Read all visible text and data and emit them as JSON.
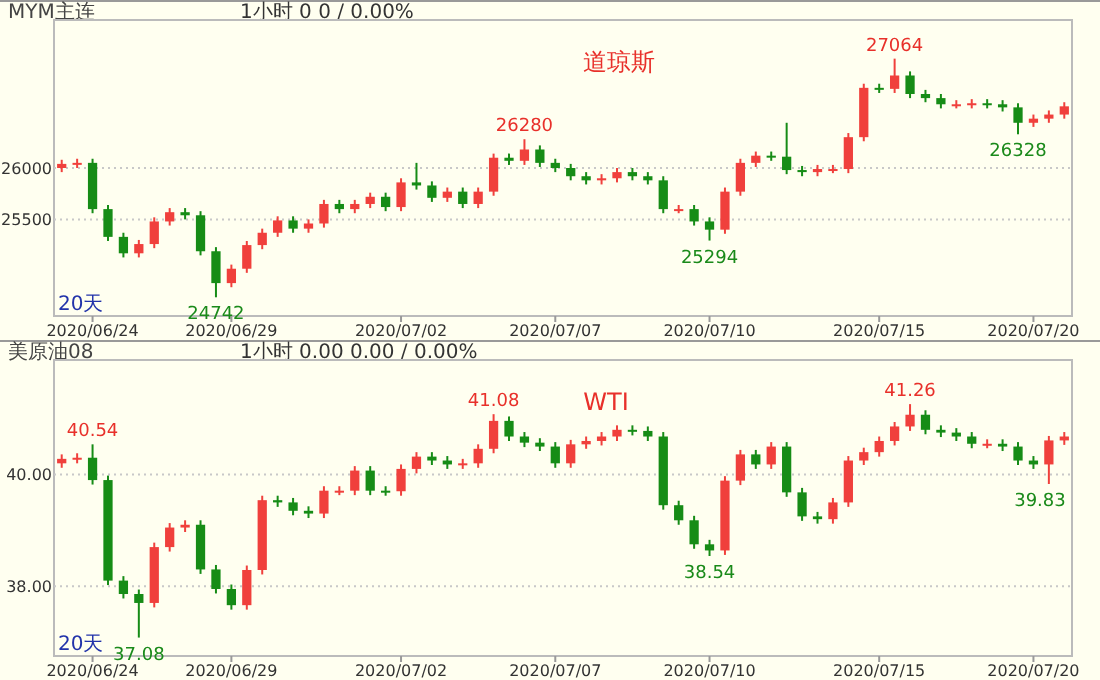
{
  "chart_data": [
    {
      "type": "candlestick",
      "title": "MYM主连",
      "subtitle": "1小时   0    0 / 0.00%",
      "categories": [
        null,
        null,
        "2020/06/24",
        null,
        null,
        null,
        null,
        null,
        null,
        null,
        null,
        "2020/06/29",
        null,
        null,
        null,
        null,
        null,
        null,
        null,
        null,
        null,
        null,
        "2020/07/02",
        null,
        null,
        null,
        null,
        null,
        null,
        null,
        null,
        null,
        "2020/07/07",
        null,
        null,
        null,
        null,
        null,
        null,
        null,
        null,
        null,
        "2020/07/10",
        null,
        null,
        null,
        null,
        null,
        null,
        null,
        null,
        null,
        null,
        "2020/07/15",
        null,
        null,
        null,
        null,
        null,
        null,
        null,
        null,
        null,
        "2020/07/20",
        null,
        null
      ],
      "ohlc": [
        [
          26000,
          26080,
          25960,
          26040
        ],
        [
          26040,
          26090,
          26000,
          26050
        ],
        [
          26050,
          26090,
          25560,
          25600
        ],
        [
          25600,
          25640,
          25290,
          25330
        ],
        [
          25330,
          25370,
          25130,
          25170
        ],
        [
          25170,
          25300,
          25130,
          25260
        ],
        [
          25260,
          25520,
          25220,
          25480
        ],
        [
          25480,
          25610,
          25440,
          25570
        ],
        [
          25570,
          25610,
          25500,
          25540
        ],
        [
          25540,
          25580,
          25150,
          25190
        ],
        [
          25190,
          25230,
          24742,
          24880
        ],
        [
          24880,
          25060,
          24840,
          25020
        ],
        [
          25020,
          25290,
          24980,
          25250
        ],
        [
          25250,
          25410,
          25210,
          25370
        ],
        [
          25370,
          25530,
          25330,
          25490
        ],
        [
          25490,
          25530,
          25370,
          25410
        ],
        [
          25410,
          25500,
          25370,
          25460
        ],
        [
          25460,
          25690,
          25420,
          25650
        ],
        [
          25650,
          25690,
          25560,
          25600
        ],
        [
          25600,
          25690,
          25560,
          25650
        ],
        [
          25650,
          25760,
          25610,
          25720
        ],
        [
          25720,
          25760,
          25580,
          25620
        ],
        [
          25620,
          25900,
          25580,
          25860
        ],
        [
          25860,
          26050,
          25790,
          25830
        ],
        [
          25830,
          25870,
          25670,
          25710
        ],
        [
          25710,
          25810,
          25670,
          25770
        ],
        [
          25770,
          25810,
          25610,
          25650
        ],
        [
          25650,
          25810,
          25610,
          25770
        ],
        [
          25770,
          26140,
          25730,
          26100
        ],
        [
          26100,
          26140,
          26030,
          26070
        ],
        [
          26070,
          26280,
          26030,
          26180
        ],
        [
          26180,
          26220,
          26010,
          26050
        ],
        [
          26050,
          26090,
          25960,
          26000
        ],
        [
          26000,
          26040,
          25880,
          25920
        ],
        [
          25920,
          25960,
          25840,
          25880
        ],
        [
          25880,
          25940,
          25840,
          25900
        ],
        [
          25900,
          26000,
          25860,
          25960
        ],
        [
          25960,
          26000,
          25880,
          25920
        ],
        [
          25920,
          25960,
          25840,
          25880
        ],
        [
          25880,
          25920,
          25560,
          25600
        ],
        [
          25600,
          25640,
          25560,
          25600
        ],
        [
          25600,
          25640,
          25440,
          25480
        ],
        [
          25480,
          25520,
          25294,
          25400
        ],
        [
          25400,
          25810,
          25360,
          25770
        ],
        [
          25770,
          26090,
          25730,
          26050
        ],
        [
          26050,
          26160,
          26010,
          26120
        ],
        [
          26120,
          26160,
          26070,
          26110
        ],
        [
          26110,
          26440,
          25940,
          25980
        ],
        [
          25980,
          26020,
          25920,
          25960
        ],
        [
          25960,
          26030,
          25920,
          25990
        ],
        [
          25990,
          26030,
          25950,
          25990
        ],
        [
          25990,
          26340,
          25950,
          26300
        ],
        [
          26300,
          26820,
          26260,
          26780
        ],
        [
          26780,
          26820,
          26730,
          26770
        ],
        [
          26770,
          27064,
          26730,
          26900
        ],
        [
          26900,
          26940,
          26680,
          26720
        ],
        [
          26720,
          26760,
          26640,
          26680
        ],
        [
          26680,
          26720,
          26580,
          26620
        ],
        [
          26620,
          26660,
          26580,
          26620
        ],
        [
          26620,
          26670,
          26580,
          26630
        ],
        [
          26630,
          26670,
          26580,
          26620
        ],
        [
          26620,
          26660,
          26550,
          26590
        ],
        [
          26590,
          26630,
          26328,
          26440
        ],
        [
          26440,
          26520,
          26400,
          26480
        ],
        [
          26480,
          26560,
          26440,
          26520
        ],
        [
          26520,
          26640,
          26480,
          26600
        ]
      ],
      "colors": [
        "#f0403c",
        "#f0403c",
        "#168c16",
        "#168c16",
        "#168c16",
        "#f0403c",
        "#f0403c",
        "#f0403c",
        "#168c16",
        "#168c16",
        "#168c16",
        "#f0403c",
        "#f0403c",
        "#f0403c",
        "#f0403c",
        "#168c16",
        "#f0403c",
        "#f0403c",
        "#168c16",
        "#f0403c",
        "#f0403c",
        "#168c16",
        "#f0403c",
        "#168c16",
        "#168c16",
        "#f0403c",
        "#168c16",
        "#f0403c",
        "#f0403c",
        "#168c16",
        "#f0403c",
        "#168c16",
        "#168c16",
        "#168c16",
        "#168c16",
        "#f0403c",
        "#f0403c",
        "#168c16",
        "#168c16",
        "#168c16",
        "#f0403c",
        "#168c16",
        "#168c16",
        "#f0403c",
        "#f0403c",
        "#f0403c",
        "#168c16",
        "#168c16",
        "#168c16",
        "#f0403c",
        "#f0403c",
        "#f0403c",
        "#f0403c",
        "#168c16",
        "#f0403c",
        "#168c16",
        "#168c16",
        "#168c16",
        "#f0403c",
        "#f0403c",
        "#168c16",
        "#168c16",
        "#168c16",
        "#f0403c",
        "#f0403c",
        "#f0403c"
      ],
      "ylim": [
        24560,
        27440
      ],
      "yticks": [
        25500,
        26000
      ],
      "grid": "y",
      "annotations": [
        "道琼斯",
        "20天",
        {
          "text": "24742",
          "y": 24742
        },
        {
          "text": "26280",
          "y": 26280
        },
        {
          "text": "25294",
          "y": 25294
        },
        {
          "text": "27064",
          "y": 27064
        },
        {
          "text": "26328",
          "y": 26328
        }
      ]
    },
    {
      "type": "candlestick",
      "title": "美原油08",
      "subtitle": "1小时   0.00    0.00 / 0.00%",
      "categories": [
        null,
        null,
        "2020/06/24",
        null,
        null,
        null,
        null,
        null,
        null,
        null,
        null,
        "2020/06/29",
        null,
        null,
        null,
        null,
        null,
        null,
        null,
        null,
        null,
        null,
        "2020/07/02",
        null,
        null,
        null,
        null,
        null,
        null,
        null,
        null,
        null,
        "2020/07/07",
        null,
        null,
        null,
        null,
        null,
        null,
        null,
        null,
        null,
        "2020/07/10",
        null,
        null,
        null,
        null,
        null,
        null,
        null,
        null,
        null,
        null,
        "2020/07/15",
        null,
        null,
        null,
        null,
        null,
        null,
        null,
        null,
        null,
        "2020/07/20",
        null,
        null
      ],
      "ohlc": [
        [
          40.2,
          40.36,
          40.12,
          40.28
        ],
        [
          40.28,
          40.38,
          40.2,
          40.3
        ],
        [
          40.3,
          40.54,
          39.82,
          39.9
        ],
        [
          39.9,
          39.98,
          38.02,
          38.1
        ],
        [
          38.1,
          38.18,
          37.78,
          37.86
        ],
        [
          37.86,
          37.94,
          37.08,
          37.7
        ],
        [
          37.7,
          38.78,
          37.62,
          38.7
        ],
        [
          38.7,
          39.13,
          38.62,
          39.05
        ],
        [
          39.05,
          39.18,
          38.97,
          39.1
        ],
        [
          39.1,
          39.18,
          38.22,
          38.3
        ],
        [
          38.3,
          38.38,
          37.87,
          37.95
        ],
        [
          37.95,
          38.03,
          37.58,
          37.66
        ],
        [
          37.66,
          38.37,
          37.58,
          38.29
        ],
        [
          38.29,
          39.62,
          38.21,
          39.54
        ],
        [
          39.54,
          39.62,
          39.42,
          39.5
        ],
        [
          39.5,
          39.58,
          39.27,
          39.35
        ],
        [
          39.35,
          39.43,
          39.22,
          39.3
        ],
        [
          39.3,
          39.79,
          39.22,
          39.71
        ],
        [
          39.71,
          39.79,
          39.63,
          39.71
        ],
        [
          39.71,
          40.15,
          39.63,
          40.07
        ],
        [
          40.07,
          40.15,
          39.63,
          39.71
        ],
        [
          39.71,
          39.79,
          39.62,
          39.7
        ],
        [
          39.7,
          40.18,
          39.62,
          40.1
        ],
        [
          40.1,
          40.4,
          40.02,
          40.32
        ],
        [
          40.32,
          40.4,
          40.17,
          40.25
        ],
        [
          40.25,
          40.33,
          40.1,
          40.18
        ],
        [
          40.18,
          40.28,
          40.1,
          40.2
        ],
        [
          40.2,
          40.54,
          40.12,
          40.46
        ],
        [
          40.46,
          41.08,
          40.38,
          40.96
        ],
        [
          40.96,
          41.04,
          40.6,
          40.68
        ],
        [
          40.68,
          40.76,
          40.49,
          40.57
        ],
        [
          40.57,
          40.65,
          40.42,
          40.5
        ],
        [
          40.5,
          40.58,
          40.12,
          40.2
        ],
        [
          40.2,
          40.62,
          40.12,
          40.54
        ],
        [
          40.54,
          40.68,
          40.46,
          40.6
        ],
        [
          40.6,
          40.76,
          40.52,
          40.68
        ],
        [
          40.68,
          40.88,
          40.6,
          40.8
        ],
        [
          40.8,
          40.88,
          40.7,
          40.78
        ],
        [
          40.78,
          40.86,
          40.6,
          40.68
        ],
        [
          40.68,
          40.76,
          39.37,
          39.45
        ],
        [
          39.45,
          39.53,
          39.1,
          39.18
        ],
        [
          39.18,
          39.26,
          38.67,
          38.75
        ],
        [
          38.75,
          38.83,
          38.54,
          38.64
        ],
        [
          38.64,
          39.97,
          38.56,
          39.89
        ],
        [
          39.89,
          40.44,
          39.81,
          40.36
        ],
        [
          40.36,
          40.44,
          40.1,
          40.18
        ],
        [
          40.18,
          40.58,
          40.1,
          40.5
        ],
        [
          40.5,
          40.58,
          39.6,
          39.68
        ],
        [
          39.68,
          39.76,
          39.17,
          39.25
        ],
        [
          39.25,
          39.33,
          39.12,
          39.2
        ],
        [
          39.2,
          39.58,
          39.12,
          39.5
        ],
        [
          39.5,
          40.33,
          39.42,
          40.25
        ],
        [
          40.25,
          40.48,
          40.17,
          40.4
        ],
        [
          40.4,
          40.68,
          40.32,
          40.6
        ],
        [
          40.6,
          40.94,
          40.52,
          40.86
        ],
        [
          40.86,
          41.26,
          40.78,
          41.07
        ],
        [
          41.07,
          41.15,
          40.72,
          40.8
        ],
        [
          40.8,
          40.88,
          40.67,
          40.75
        ],
        [
          40.75,
          40.83,
          40.6,
          40.68
        ],
        [
          40.68,
          40.76,
          40.47,
          40.55
        ],
        [
          40.55,
          40.63,
          40.47,
          40.55
        ],
        [
          40.55,
          40.63,
          40.42,
          40.5
        ],
        [
          40.5,
          40.58,
          40.17,
          40.25
        ],
        [
          40.25,
          40.33,
          40.1,
          40.18
        ],
        [
          40.18,
          40.69,
          39.83,
          40.61
        ],
        [
          40.61,
          40.76,
          40.53,
          40.68
        ]
      ],
      "colors": [
        "#f0403c",
        "#f0403c",
        "#168c16",
        "#168c16",
        "#168c16",
        "#168c16",
        "#f0403c",
        "#f0403c",
        "#f0403c",
        "#168c16",
        "#168c16",
        "#168c16",
        "#f0403c",
        "#f0403c",
        "#168c16",
        "#168c16",
        "#168c16",
        "#f0403c",
        "#f0403c",
        "#f0403c",
        "#168c16",
        "#168c16",
        "#f0403c",
        "#f0403c",
        "#168c16",
        "#168c16",
        "#f0403c",
        "#f0403c",
        "#f0403c",
        "#168c16",
        "#168c16",
        "#168c16",
        "#168c16",
        "#f0403c",
        "#f0403c",
        "#f0403c",
        "#f0403c",
        "#168c16",
        "#168c16",
        "#168c16",
        "#168c16",
        "#168c16",
        "#168c16",
        "#f0403c",
        "#f0403c",
        "#168c16",
        "#f0403c",
        "#168c16",
        "#168c16",
        "#168c16",
        "#f0403c",
        "#f0403c",
        "#f0403c",
        "#f0403c",
        "#f0403c",
        "#f0403c",
        "#168c16",
        "#168c16",
        "#168c16",
        "#168c16",
        "#f0403c",
        "#168c16",
        "#168c16",
        "#168c16",
        "#f0403c",
        "#f0403c"
      ],
      "ylim": [
        36.75,
        42.05
      ],
      "yticks": [
        {
          "value": 38,
          "label": "38.00"
        },
        {
          "value": 40,
          "label": "40.00"
        }
      ],
      "grid": "y",
      "annotations": [
        "WTI",
        "20天",
        {
          "text": "40.54",
          "y": 40.54
        },
        {
          "text": "37.08",
          "y": 37.08
        },
        {
          "text": "41.08",
          "y": 41.08
        },
        {
          "text": "38.54",
          "y": 38.54
        },
        {
          "text": "41.26",
          "y": 41.26
        },
        {
          "text": "39.83",
          "y": 39.83
        }
      ]
    }
  ]
}
